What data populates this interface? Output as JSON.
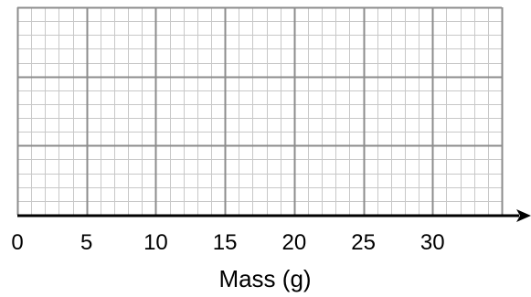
{
  "chart_data": {
    "type": "scatter",
    "title": "",
    "xlabel": "Mass (g)",
    "ylabel": "",
    "xlim": [
      0,
      35
    ],
    "x_ticks": [
      "0",
      "5",
      "10",
      "15",
      "20",
      "25",
      "30"
    ],
    "x_tick_values": [
      0,
      5,
      10,
      15,
      20,
      25,
      30
    ],
    "minor_grid_step": 1,
    "major_grid_step": 5,
    "horizontal_major_lines": 3,
    "horizontal_minor_per_major": 5,
    "grid": true,
    "series": [],
    "colors": {
      "minor_grid": "#c8c8c8",
      "major_grid": "#8c8c8c",
      "axis": "#000000"
    }
  }
}
